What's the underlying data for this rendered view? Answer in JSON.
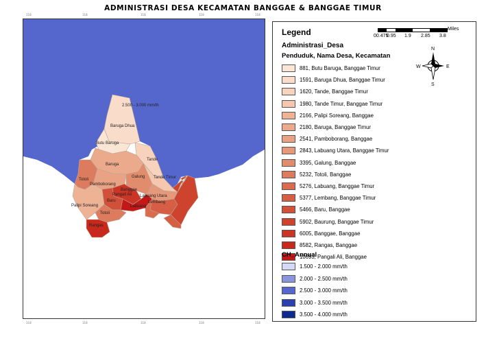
{
  "title": "ADMINISTRASI DESA KECAMATAN BANGGAE & BANGGAE TIMUR",
  "map": {
    "annotation": "2.500 - 3.000 mm/th",
    "village_labels": [
      "Baruga Dhua",
      "Butu Baruga",
      "Baruga",
      "Tande",
      "Totoli",
      "Pamboborang",
      "Galung",
      "Tande Timur",
      "Banggae",
      "Pangali Ali",
      "Labuang Utara",
      "Baru",
      "Lembang",
      "Labuang",
      "Palipi Soreang",
      "Totoli",
      "Rangas"
    ],
    "tick_labels": [
      "118",
      "118",
      "118",
      "118",
      "118",
      "118",
      "118",
      "118",
      "118",
      "118"
    ]
  },
  "legend": {
    "title": "Legend",
    "scale": {
      "unit": "Miles",
      "labels": [
        "00.475",
        "0.95",
        "1.9",
        "2.85",
        "3.8"
      ]
    },
    "north": {
      "n": "N",
      "s": "S",
      "e": "E",
      "w": "W"
    },
    "layer": "Administrasi_Desa",
    "field": "Penduduk, Nama Desa, Kecamatan",
    "items": [
      {
        "label": "881, Butu Baruga, Banggae Timur",
        "color": "#fbe6d6"
      },
      {
        "label": "1591, Baruga Dhua, Banggae Timur",
        "color": "#f9dcc9"
      },
      {
        "label": "1620, Tande, Banggae Timur",
        "color": "#f7d3bd"
      },
      {
        "label": "1980, Tande Timur, Banggae Timur",
        "color": "#f4c7ae"
      },
      {
        "label": "2166, Palipi Soreang, Banggae",
        "color": "#eeb295"
      },
      {
        "label": "2180, Baruga, Banggae Timur",
        "color": "#ebaa8c"
      },
      {
        "label": "2541, Pamboborang, Banggae",
        "color": "#e9a283"
      },
      {
        "label": "2843, Labuang Utara, Banggae Timur",
        "color": "#e6987a"
      },
      {
        "label": "3395, Galung, Banggae",
        "color": "#e28c6e"
      },
      {
        "label": "5232, Totoli, Banggae",
        "color": "#dd7b5e"
      },
      {
        "label": "5276, Labuang, Banggae Timur",
        "color": "#d96c50"
      },
      {
        "label": "5377, Lembang, Banggae Timur",
        "color": "#d55e44"
      },
      {
        "label": "5466, Baru, Banggae",
        "color": "#d24f39"
      },
      {
        "label": "5902, Baurung, Banggae Timur",
        "color": "#ce432e"
      },
      {
        "label": "6005, Banggae, Banggae",
        "color": "#cb3526"
      },
      {
        "label": "8582, Rangas, Banggae",
        "color": "#c9281c"
      },
      {
        "label": "10693, Pangali Ali, Banggae",
        "color": "#c41818"
      }
    ],
    "ch_title": "CH_Annual",
    "ch_items": [
      {
        "label": "1.500 - 2.000 mm/th",
        "color": "#d6d9f5"
      },
      {
        "label": "2.000 - 2.500 mm/th",
        "color": "#8a95e0"
      },
      {
        "label": "2.500 - 3.000 mm/th",
        "color": "#5566cc"
      },
      {
        "label": "3.000 - 3.500 mm/th",
        "color": "#2a41ae"
      },
      {
        "label": "3.500 - 4.000 mm/th",
        "color": "#0d2a8e"
      }
    ]
  }
}
